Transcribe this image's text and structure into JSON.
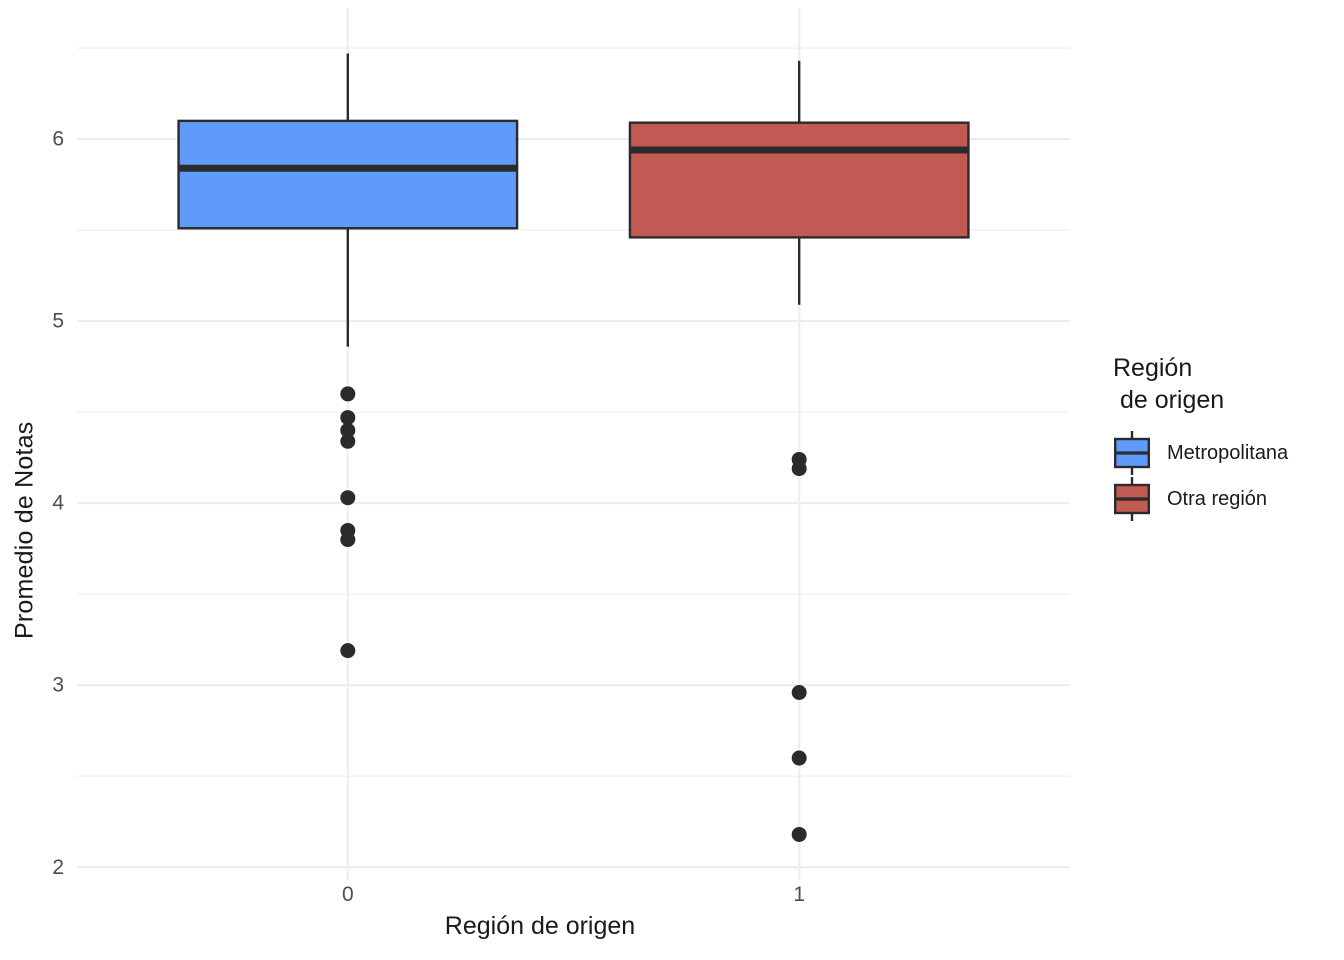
{
  "colors": {
    "background": "#FFFFFF",
    "box_stroke": "#2B2B2B",
    "outlier_dot": "#2B2B2B",
    "grid_major": "#EBEBEB",
    "grid_minor": "#F3F3F3",
    "grid_vertical": "#F0F0F0",
    "tick_label": "#4D4D4D",
    "axis_title": "#1A1A1A",
    "metropolitana_fill": "#5E9BFA",
    "otra_region_fill": "#C05A52"
  },
  "chart_data": {
    "type": "boxplot",
    "title": "",
    "xlabel": "Región de origen",
    "ylabel": "Promedio de Notas",
    "categories": [
      "0",
      "1"
    ],
    "y_ticks": [
      2,
      3,
      4,
      5,
      6
    ],
    "y_minor_ticks": [
      2.5,
      3.5,
      4.5,
      5.5,
      6.5
    ],
    "ylim": [
      1.93,
      6.72
    ],
    "grid": "major horizontal at integers, minor at 0.5 steps, vertical line per category",
    "legend": {
      "position": "right",
      "title": "Región\n de origen",
      "items": [
        {
          "label": "Metropolitana",
          "color": "#5E9BFA"
        },
        {
          "label": "Otra región",
          "color": "#C05A52"
        }
      ]
    },
    "series": [
      {
        "name": "Metropolitana",
        "category": "0",
        "fill": "#5E9BFA",
        "whisker_high": 6.47,
        "q3": 6.1,
        "median": 5.84,
        "q1": 5.51,
        "whisker_low": 4.86,
        "outliers": [
          4.6,
          4.47,
          4.4,
          4.34,
          4.03,
          3.85,
          3.8,
          3.19
        ]
      },
      {
        "name": "Otra región",
        "category": "1",
        "fill": "#C05A52",
        "whisker_high": 6.43,
        "q3": 6.09,
        "median": 5.94,
        "q1": 5.46,
        "whisker_low": 5.09,
        "outliers": [
          4.24,
          4.19,
          2.96,
          2.6,
          2.18
        ]
      }
    ]
  }
}
